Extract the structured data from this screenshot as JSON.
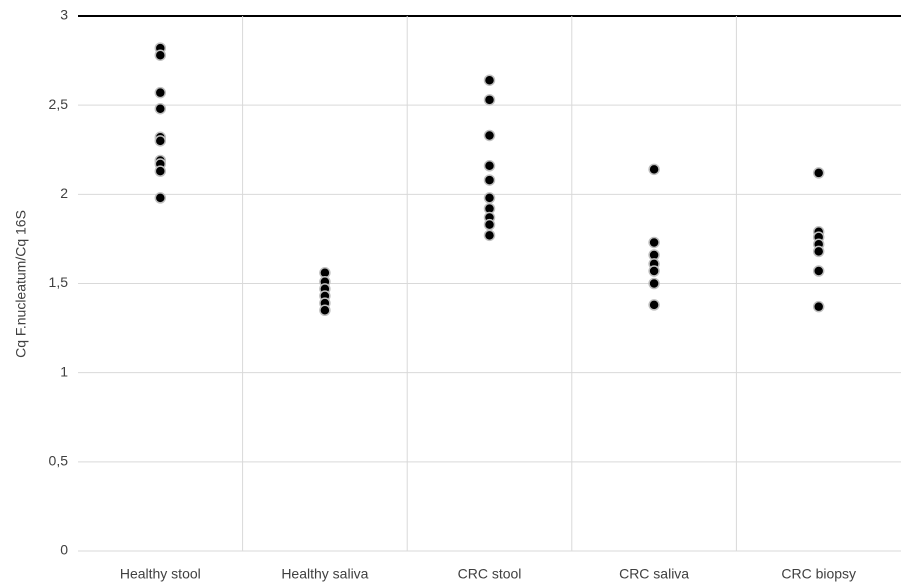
{
  "chart_data": {
    "type": "strip",
    "y_label": "Cq F.nucleatum/Cq 16S",
    "categories": [
      "Healthy stool",
      "Healthy saliva",
      "CRC stool",
      "CRC saliva",
      "CRC biopsy"
    ],
    "values": [
      [
        2.82,
        2.78,
        2.57,
        2.48,
        2.32,
        2.3,
        2.19,
        2.17,
        2.13,
        1.98
      ],
      [
        1.56,
        1.51,
        1.47,
        1.43,
        1.39,
        1.35
      ],
      [
        2.64,
        2.53,
        2.33,
        2.16,
        2.08,
        1.98,
        1.92,
        1.87,
        1.83,
        1.77
      ],
      [
        2.14,
        1.73,
        1.66,
        1.61,
        1.57,
        1.5,
        1.38
      ],
      [
        2.12,
        1.79,
        1.76,
        1.72,
        1.68,
        1.57,
        1.37
      ]
    ],
    "color": "#000000",
    "ylim": [
      0,
      3
    ],
    "yticks": [
      0,
      {
        "value": 0.5,
        "label": "0,5"
      },
      1,
      {
        "value": 1.5,
        "label": "1,5"
      },
      2,
      {
        "value": 2.5,
        "label": "2,5"
      },
      3
    ],
    "grid": true
  }
}
